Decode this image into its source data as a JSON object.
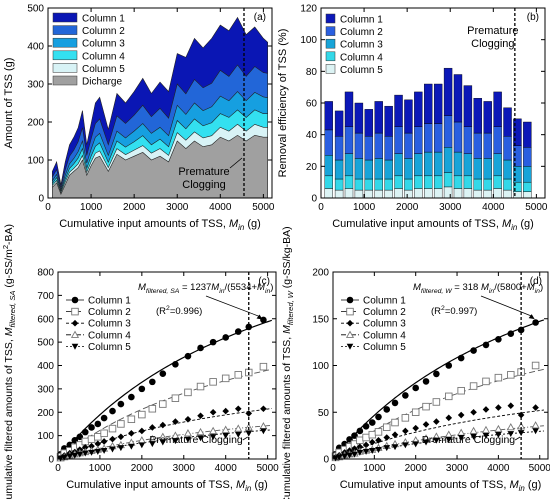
{
  "chart_data": [
    {
      "type": "area",
      "panel_label": "(a)",
      "xlabel": "Cumulative input amounts of TSS, ",
      "xlabel_sub": "M",
      "xlabel_sub2": "in",
      "xlabel_unit": " (g)",
      "ylabel": "Amount of TSS (g)",
      "xlim": [
        0,
        5200
      ],
      "ylim": [
        0,
        500
      ],
      "xticks": [
        "0",
        "1000",
        "2000",
        "3000",
        "4000",
        "5000"
      ],
      "xtick_values": [
        0,
        1000,
        2000,
        3000,
        4000,
        5000
      ],
      "yticks": [
        "0",
        "100",
        "200",
        "300",
        "400",
        "500"
      ],
      "ytick_values": [
        0,
        100,
        200,
        300,
        400,
        500
      ],
      "annotation": "Premature\nClogging",
      "annotation_lines": [
        "Premature",
        "Clogging"
      ],
      "clog_x": 4550,
      "legend_position": "top-left",
      "x": [
        100,
        200,
        300,
        400,
        500,
        600,
        700,
        800,
        900,
        1000,
        1100,
        1200,
        1400,
        1600,
        1800,
        2000,
        2200,
        2400,
        2600,
        2800,
        3000,
        3200,
        3400,
        3600,
        3800,
        4000,
        4200,
        4400,
        4600,
        4800,
        5000,
        5100
      ],
      "series": [
        {
          "name": "Dicharge",
          "color": "#a0a0a0",
          "cumulative": [
            28,
            40,
            10,
            35,
            60,
            70,
            80,
            100,
            60,
            85,
            105,
            110,
            70,
            115,
            100,
            110,
            120,
            100,
            110,
            95,
            150,
            130,
            150,
            135,
            140,
            160,
            150,
            165,
            150,
            165,
            160,
            160
          ]
        },
        {
          "name": "Column 5",
          "color": "#d8f3f6",
          "cumulative": [
            33,
            46,
            14,
            42,
            68,
            78,
            90,
            112,
            68,
            95,
            118,
            124,
            80,
            130,
            114,
            126,
            138,
            118,
            130,
            112,
            172,
            152,
            174,
            158,
            164,
            186,
            176,
            194,
            176,
            194,
            186,
            186
          ]
        },
        {
          "name": "Column 4",
          "color": "#33e0f0",
          "cumulative": [
            38,
            54,
            18,
            50,
            78,
            90,
            105,
            130,
            78,
            110,
            136,
            145,
            94,
            150,
            134,
            148,
            164,
            140,
            155,
            135,
            204,
            182,
            208,
            190,
            198,
            222,
            212,
            232,
            212,
            232,
            222,
            222
          ]
        },
        {
          "name": "Column 3",
          "color": "#169fe0",
          "cumulative": [
            45,
            62,
            22,
            60,
            90,
            104,
            122,
            150,
            92,
            128,
            160,
            170,
            112,
            176,
            158,
            176,
            196,
            170,
            186,
            164,
            244,
            220,
            250,
            230,
            240,
            268,
            256,
            280,
            256,
            278,
            266,
            264
          ]
        },
        {
          "name": "Column 2",
          "color": "#2266d8",
          "cumulative": [
            55,
            75,
            28,
            74,
            110,
            126,
            148,
            185,
            112,
            155,
            196,
            208,
            140,
            216,
            196,
            218,
            244,
            214,
            236,
            210,
            300,
            274,
            312,
            290,
            302,
            336,
            320,
            350,
            320,
            346,
            330,
            328
          ]
        },
        {
          "name": "Column 1",
          "color": "#0a16b4",
          "cumulative": [
            70,
            95,
            35,
            95,
            140,
            160,
            185,
            230,
            140,
            195,
            250,
            265,
            180,
            275,
            250,
            280,
            315,
            275,
            305,
            280,
            380,
            370,
            420,
            395,
            420,
            455,
            440,
            475,
            430,
            450,
            420,
            410
          ]
        }
      ]
    },
    {
      "type": "bar",
      "panel_label": "(b)",
      "xlabel": "Cumulative input amounts of TSS, ",
      "xlabel_sub": "M",
      "xlabel_sub2": "in",
      "xlabel_unit": " (g)",
      "ylabel": "Removal efficiency of TSS (%)",
      "xlim": [
        0,
        5200
      ],
      "ylim": [
        0,
        120
      ],
      "xticks": [
        "0",
        "1000",
        "2000",
        "3000",
        "4000",
        "5000"
      ],
      "xtick_values": [
        0,
        1000,
        2000,
        3000,
        4000,
        5000
      ],
      "yticks": [
        "0",
        "20",
        "40",
        "60",
        "80",
        "100",
        "120"
      ],
      "ytick_values": [
        0,
        20,
        40,
        60,
        80,
        100,
        120
      ],
      "annotation_lines": [
        "Premature",
        "Clogging"
      ],
      "clog_x": 4500,
      "legend_position": "top-left",
      "x": [
        180,
        420,
        650,
        880,
        1110,
        1340,
        1570,
        1800,
        2030,
        2260,
        2490,
        2720,
        2950,
        3180,
        3410,
        3640,
        3870,
        4100,
        4330,
        4560,
        4790
      ],
      "series": [
        {
          "name": "Column 5",
          "color": "#dcf3f4",
          "values": [
            6,
            5,
            6,
            5,
            5,
            5,
            5,
            6,
            5,
            6,
            6,
            6,
            7,
            6,
            6,
            5,
            5,
            6,
            5,
            4,
            4
          ]
        },
        {
          "name": "Column 4",
          "color": "#33d8e8",
          "values": [
            8,
            7,
            8,
            7,
            7,
            7,
            7,
            8,
            7,
            8,
            8,
            8,
            9,
            8,
            8,
            7,
            7,
            8,
            7,
            6,
            6
          ]
        },
        {
          "name": "Column 3",
          "color": "#18a4d8",
          "values": [
            13,
            12,
            14,
            13,
            12,
            13,
            12,
            14,
            13,
            14,
            15,
            15,
            16,
            15,
            14,
            13,
            13,
            14,
            12,
            10,
            10
          ]
        },
        {
          "name": "Column 2",
          "color": "#2a5fe0",
          "values": [
            16,
            15,
            17,
            16,
            15,
            16,
            15,
            17,
            16,
            17,
            18,
            18,
            20,
            19,
            17,
            16,
            16,
            17,
            15,
            13,
            12
          ]
        },
        {
          "name": "Column 1",
          "color": "#0c18b8",
          "values": [
            18,
            16,
            22,
            19,
            17,
            20,
            19,
            20,
            21,
            22,
            25,
            25,
            30,
            30,
            26,
            22,
            20,
            22,
            18,
            17,
            16
          ]
        }
      ]
    },
    {
      "type": "scatter",
      "panel_label": "(c)",
      "xlabel": "Cumulative input amounts of TSS, ",
      "xlabel_sub": "M",
      "xlabel_sub2": "in",
      "xlabel_unit": " (g)",
      "ylabel_parts": [
        "Cumulative filtered amounts of TSS, ",
        "M",
        "filtered, SA",
        " (g-SS/m",
        "2",
        "-BA)"
      ],
      "xlim": [
        0,
        5200
      ],
      "ylim": [
        0,
        800
      ],
      "xticks": [
        "0",
        "1000",
        "2000",
        "3000",
        "4000",
        "5000"
      ],
      "xtick_values": [
        0,
        1000,
        2000,
        3000,
        4000,
        5000
      ],
      "yticks": [
        "0",
        "100",
        "200",
        "300",
        "400",
        "500",
        "600",
        "700",
        "800"
      ],
      "ytick_values": [
        0,
        100,
        200,
        300,
        400,
        500,
        600,
        700,
        800
      ],
      "annotation": "Premature Clogging",
      "clog_x": 4550,
      "equation_parts": [
        "M",
        "filtered, SA",
        " = 1237",
        "M",
        "in",
        "/(5534+",
        "M",
        "in",
        ")"
      ],
      "r2": "(R²=0.996)",
      "r2_parts": [
        "(R",
        "2",
        "=0.996)"
      ],
      "legend_position": "top-left",
      "x": [
        60,
        150,
        280,
        400,
        520,
        650,
        800,
        950,
        1100,
        1300,
        1500,
        1750,
        2000,
        2250,
        2500,
        2800,
        3100,
        3400,
        3700,
        4000,
        4300,
        4550,
        4900
      ],
      "series": [
        {
          "name": "Column 1",
          "marker": "filled-circle",
          "values": [
            20,
            45,
            60,
            80,
            95,
            115,
            135,
            150,
            175,
            205,
            235,
            265,
            300,
            330,
            365,
            405,
            440,
            475,
            500,
            520,
            545,
            565,
            595
          ]
        },
        {
          "name": "Column 2",
          "marker": "open-square",
          "values": [
            10,
            25,
            35,
            50,
            60,
            75,
            85,
            95,
            110,
            130,
            150,
            170,
            190,
            215,
            235,
            260,
            285,
            310,
            330,
            345,
            360,
            370,
            395
          ]
        },
        {
          "name": "Column 3",
          "marker": "filled-diamond",
          "values": [
            5,
            15,
            25,
            30,
            40,
            50,
            55,
            65,
            75,
            85,
            95,
            110,
            120,
            135,
            145,
            160,
            170,
            185,
            200,
            205,
            215,
            195,
            215
          ]
        },
        {
          "name": "Column 4",
          "marker": "open-triangle",
          "values": [
            3,
            8,
            15,
            20,
            25,
            30,
            35,
            40,
            45,
            55,
            60,
            70,
            80,
            85,
            95,
            100,
            110,
            115,
            120,
            125,
            130,
            135,
            140
          ]
        },
        {
          "name": "Column 5",
          "marker": "filled-triangle-down",
          "values": [
            3,
            7,
            12,
            15,
            20,
            25,
            28,
            32,
            36,
            42,
            48,
            54,
            60,
            65,
            72,
            78,
            84,
            90,
            95,
            100,
            105,
            110,
            120
          ]
        }
      ],
      "fits": [
        {
          "series": "Column 1",
          "a": 1237,
          "b": 5534
        },
        {
          "series": "Column 2",
          "a": 800,
          "b": 5534
        },
        {
          "series": "Column 3",
          "a": 450,
          "b": 5534
        },
        {
          "series": "Column 4",
          "a": 300,
          "b": 5534
        },
        {
          "series": "Column 5",
          "a": 260,
          "b": 5534
        }
      ]
    },
    {
      "type": "scatter",
      "panel_label": "(d)",
      "xlabel": "Cumulative input amounts of TSS, ",
      "xlabel_sub": "M",
      "xlabel_sub2": "in",
      "xlabel_unit": " (g)",
      "ylabel_parts": [
        "Cumulative filtered amounts of TSS, ",
        "M",
        "filtered, W",
        " (g-SS/kg-BA)"
      ],
      "xlim": [
        0,
        5200
      ],
      "ylim": [
        0,
        200
      ],
      "xticks": [
        "0",
        "1000",
        "2000",
        "3000",
        "4000",
        "5000"
      ],
      "xtick_values": [
        0,
        1000,
        2000,
        3000,
        4000,
        5000
      ],
      "yticks": [
        "0",
        "50",
        "100",
        "150",
        "200"
      ],
      "ytick_values": [
        0,
        50,
        100,
        150,
        200
      ],
      "annotation": "Premature Clogging",
      "clog_x": 4550,
      "equation_parts": [
        "M",
        "filtered, W",
        " = 318 ",
        "M",
        "in",
        "/(5800+",
        "M",
        "in",
        ")"
      ],
      "r2": "(R²=0.997)",
      "r2_parts": [
        "(R",
        "2",
        "=0.997)"
      ],
      "legend_position": "top-left",
      "x": [
        60,
        150,
        280,
        400,
        520,
        650,
        800,
        950,
        1100,
        1300,
        1500,
        1750,
        2000,
        2250,
        2500,
        2800,
        3100,
        3400,
        3700,
        4000,
        4300,
        4550,
        4900
      ],
      "series": [
        {
          "name": "Column 1",
          "marker": "filled-circle",
          "values": [
            5,
            12,
            16,
            21,
            25,
            30,
            35,
            39,
            45,
            53,
            60,
            68,
            76,
            83,
            91,
            100,
            108,
            116,
            122,
            128,
            134,
            138,
            146
          ]
        },
        {
          "name": "Column 2",
          "marker": "open-square",
          "values": [
            3,
            7,
            10,
            13,
            16,
            20,
            23,
            26,
            29,
            34,
            39,
            44,
            50,
            56,
            61,
            67,
            73,
            78,
            83,
            87,
            90,
            93,
            100
          ]
        },
        {
          "name": "Column 3",
          "marker": "filled-diamond",
          "values": [
            2,
            4,
            7,
            9,
            11,
            13,
            15,
            18,
            20,
            23,
            26,
            30,
            33,
            37,
            40,
            44,
            47,
            50,
            53,
            55,
            57,
            47,
            55
          ]
        },
        {
          "name": "Column 4",
          "marker": "open-triangle",
          "values": [
            1,
            2,
            4,
            5,
            6,
            8,
            9,
            10,
            12,
            14,
            16,
            18,
            20,
            22,
            24,
            26,
            28,
            30,
            31,
            32,
            34,
            35,
            36
          ]
        },
        {
          "name": "Column 5",
          "marker": "filled-triangle-down",
          "values": [
            1,
            2,
            3,
            4,
            5,
            7,
            8,
            9,
            10,
            12,
            13,
            15,
            16,
            18,
            20,
            21,
            23,
            24,
            25,
            26,
            27,
            28,
            30
          ]
        }
      ],
      "fits": [
        {
          "series": "Column 1",
          "a": 318,
          "b": 5800
        },
        {
          "series": "Column 2",
          "a": 205,
          "b": 5800
        },
        {
          "series": "Column 3",
          "a": 112,
          "b": 5800
        },
        {
          "series": "Column 4",
          "a": 76,
          "b": 5800
        },
        {
          "series": "Column 5",
          "a": 64,
          "b": 5800
        }
      ]
    }
  ]
}
